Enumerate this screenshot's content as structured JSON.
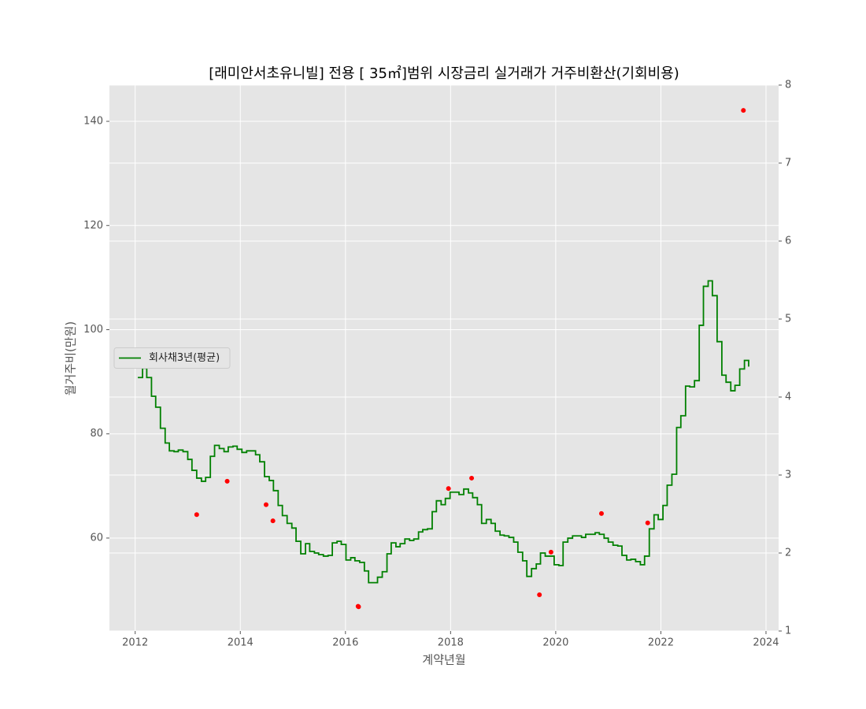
{
  "chart_data": {
    "type": "step-scatter",
    "title": "[래미안서초유니빌] 전용 [ 35㎡]범위 시장금리 실거래가 거주비환산(기회비용)",
    "xlabel": "계약년월",
    "ylabel": "월거주비(만원)",
    "xlim": [
      2011.51,
      2024.24
    ],
    "xticks": [
      2012,
      2014,
      2016,
      2018,
      2020,
      2022,
      2024
    ],
    "ylim": [
      42.15,
      146.96
    ],
    "yticks": [
      60,
      80,
      100,
      120,
      140
    ],
    "y2lim": [
      1,
      8
    ],
    "y2ticks": [
      1,
      2,
      3,
      4,
      5,
      6,
      7,
      8
    ],
    "grid": true,
    "legend": "center left",
    "series": [
      {
        "name": "회사채3년(평균)",
        "color": "#008000",
        "axis": "y2",
        "style": "step",
        "x": [
          2012.05,
          2012.14,
          2012.22,
          2012.31,
          2012.39,
          2012.48,
          2012.57,
          2012.65,
          2012.74,
          2012.82,
          2012.91,
          2013.0,
          2013.08,
          2013.17,
          2013.26,
          2013.34,
          2013.43,
          2013.51,
          2013.6,
          2013.69,
          2013.77,
          2013.86,
          2013.94,
          2014.03,
          2014.12,
          2014.2,
          2014.29,
          2014.37,
          2014.46,
          2014.55,
          2014.63,
          2014.72,
          2014.8,
          2014.89,
          2014.98,
          2015.06,
          2015.15,
          2015.24,
          2015.32,
          2015.41,
          2015.49,
          2015.58,
          2015.67,
          2015.75,
          2015.84,
          2015.92,
          2016.01,
          2016.1,
          2016.18,
          2016.27,
          2016.36,
          2016.44,
          2016.53,
          2016.61,
          2016.7,
          2016.79,
          2016.87,
          2016.96,
          2017.04,
          2017.13,
          2017.22,
          2017.3,
          2017.39,
          2017.47,
          2017.56,
          2017.65,
          2017.73,
          2017.82,
          2017.9,
          2017.99,
          2018.08,
          2018.16,
          2018.25,
          2018.34,
          2018.42,
          2018.51,
          2018.59,
          2018.68,
          2018.77,
          2018.85,
          2018.94,
          2019.02,
          2019.11,
          2019.2,
          2019.28,
          2019.37,
          2019.45,
          2019.54,
          2019.63,
          2019.71,
          2019.8,
          2019.88,
          2019.97,
          2020.06,
          2020.14,
          2020.23,
          2020.32,
          2020.4,
          2020.49,
          2020.57,
          2020.66,
          2020.75,
          2020.83,
          2020.92,
          2021.0,
          2021.09,
          2021.18,
          2021.26,
          2021.35,
          2021.43,
          2021.52,
          2021.61,
          2021.69,
          2021.78,
          2021.87,
          2021.95,
          2022.04,
          2022.12,
          2022.21,
          2022.3,
          2022.38,
          2022.47,
          2022.55,
          2022.64,
          2022.73,
          2022.81,
          2022.9,
          2022.98,
          2023.07,
          2023.16,
          2023.24,
          2023.33,
          2023.41,
          2023.5,
          2023.59,
          2023.67
        ],
        "values": [
          4.25,
          4.37,
          4.25,
          4.01,
          3.87,
          3.6,
          3.41,
          3.31,
          3.3,
          3.32,
          3.3,
          3.2,
          3.06,
          2.96,
          2.92,
          2.97,
          3.24,
          3.38,
          3.34,
          3.3,
          3.36,
          3.37,
          3.33,
          3.29,
          3.31,
          3.31,
          3.26,
          3.17,
          2.98,
          2.93,
          2.8,
          2.61,
          2.48,
          2.38,
          2.32,
          2.15,
          1.99,
          2.12,
          2.02,
          2.0,
          1.98,
          1.96,
          1.97,
          2.13,
          2.15,
          2.11,
          1.91,
          1.94,
          1.9,
          1.88,
          1.77,
          1.62,
          1.62,
          1.69,
          1.76,
          1.99,
          2.13,
          2.08,
          2.12,
          2.18,
          2.16,
          2.18,
          2.27,
          2.3,
          2.31,
          2.53,
          2.67,
          2.62,
          2.7,
          2.78,
          2.78,
          2.75,
          2.82,
          2.77,
          2.71,
          2.62,
          2.38,
          2.43,
          2.38,
          2.28,
          2.23,
          2.22,
          2.2,
          2.14,
          2.01,
          1.9,
          1.7,
          1.8,
          1.86,
          2.0,
          1.96,
          1.96,
          1.85,
          1.84,
          2.14,
          2.19,
          2.22,
          2.22,
          2.2,
          2.24,
          2.24,
          2.26,
          2.24,
          2.19,
          2.14,
          2.1,
          2.09,
          1.97,
          1.91,
          1.92,
          1.89,
          1.85,
          1.96,
          2.31,
          2.49,
          2.43,
          2.61,
          2.87,
          3.01,
          3.61,
          3.76,
          4.14,
          4.13,
          4.21,
          4.92,
          5.42,
          5.49,
          5.3,
          4.71,
          4.28,
          4.19,
          4.08,
          4.15,
          4.36,
          4.47,
          4.39
        ]
      },
      {
        "color": "#ff0000",
        "style": "scatter",
        "x": [
          2013.17,
          2013.75,
          2014.49,
          2014.62,
          2016.24,
          2016.25,
          2017.96,
          2018.4,
          2019.69,
          2019.91,
          2020.87,
          2021.75,
          2023.57
        ],
        "values": [
          64.5,
          70.9,
          66.4,
          63.3,
          46.9,
          46.8,
          69.5,
          71.5,
          49.1,
          57.3,
          64.7,
          62.9,
          142.1
        ]
      }
    ]
  }
}
